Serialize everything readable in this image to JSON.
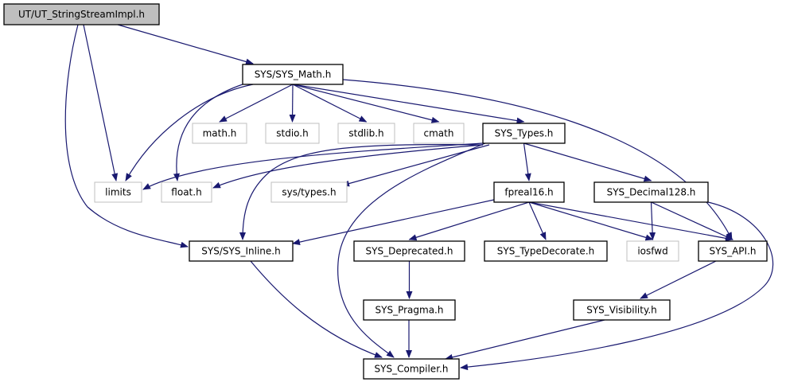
{
  "colors": {
    "edge": "#191970",
    "root_fill": "#bfbfbf",
    "node_border": "#000000",
    "external_border": "#bfbfbf"
  },
  "nodes": [
    {
      "id": "ut",
      "label": "UT/UT_StringStreamImpl.h",
      "kind": "root"
    },
    {
      "id": "math",
      "label": "SYS/SYS_Math.h",
      "kind": "file"
    },
    {
      "id": "mathh",
      "label": "math.h",
      "kind": "external"
    },
    {
      "id": "stdio",
      "label": "stdio.h",
      "kind": "external"
    },
    {
      "id": "stdlib",
      "label": "stdlib.h",
      "kind": "external"
    },
    {
      "id": "cmath",
      "label": "cmath",
      "kind": "external"
    },
    {
      "id": "types",
      "label": "SYS_Types.h",
      "kind": "file"
    },
    {
      "id": "limits",
      "label": "limits",
      "kind": "external"
    },
    {
      "id": "float",
      "label": "float.h",
      "kind": "external"
    },
    {
      "id": "systypes",
      "label": "sys/types.h",
      "kind": "external"
    },
    {
      "id": "fpreal16",
      "label": "fpreal16.h",
      "kind": "file"
    },
    {
      "id": "dec128",
      "label": "SYS_Decimal128.h",
      "kind": "file"
    },
    {
      "id": "inline",
      "label": "SYS/SYS_Inline.h",
      "kind": "file"
    },
    {
      "id": "deprecated",
      "label": "SYS_Deprecated.h",
      "kind": "file"
    },
    {
      "id": "typedec",
      "label": "SYS_TypeDecorate.h",
      "kind": "file"
    },
    {
      "id": "iosfwd",
      "label": "iosfwd",
      "kind": "external"
    },
    {
      "id": "api",
      "label": "SYS_API.h",
      "kind": "file"
    },
    {
      "id": "pragma",
      "label": "SYS_Pragma.h",
      "kind": "file"
    },
    {
      "id": "visibility",
      "label": "SYS_Visibility.h",
      "kind": "file"
    },
    {
      "id": "compiler",
      "label": "SYS_Compiler.h",
      "kind": "file"
    }
  ],
  "edges": [
    [
      "ut",
      "math"
    ],
    [
      "ut",
      "limits"
    ],
    [
      "ut",
      "inline"
    ],
    [
      "math",
      "limits"
    ],
    [
      "math",
      "float"
    ],
    [
      "math",
      "mathh"
    ],
    [
      "math",
      "stdio"
    ],
    [
      "math",
      "stdlib"
    ],
    [
      "math",
      "cmath"
    ],
    [
      "math",
      "types"
    ],
    [
      "math",
      "api"
    ],
    [
      "types",
      "limits"
    ],
    [
      "types",
      "float"
    ],
    [
      "types",
      "systypes"
    ],
    [
      "types",
      "inline"
    ],
    [
      "types",
      "compiler"
    ],
    [
      "types",
      "fpreal16"
    ],
    [
      "types",
      "dec128"
    ],
    [
      "fpreal16",
      "inline"
    ],
    [
      "fpreal16",
      "deprecated"
    ],
    [
      "fpreal16",
      "typedec"
    ],
    [
      "fpreal16",
      "iosfwd"
    ],
    [
      "fpreal16",
      "api"
    ],
    [
      "dec128",
      "iosfwd"
    ],
    [
      "dec128",
      "api"
    ],
    [
      "dec128",
      "compiler"
    ],
    [
      "inline",
      "compiler"
    ],
    [
      "deprecated",
      "pragma"
    ],
    [
      "pragma",
      "compiler"
    ],
    [
      "api",
      "visibility"
    ],
    [
      "visibility",
      "compiler"
    ]
  ]
}
